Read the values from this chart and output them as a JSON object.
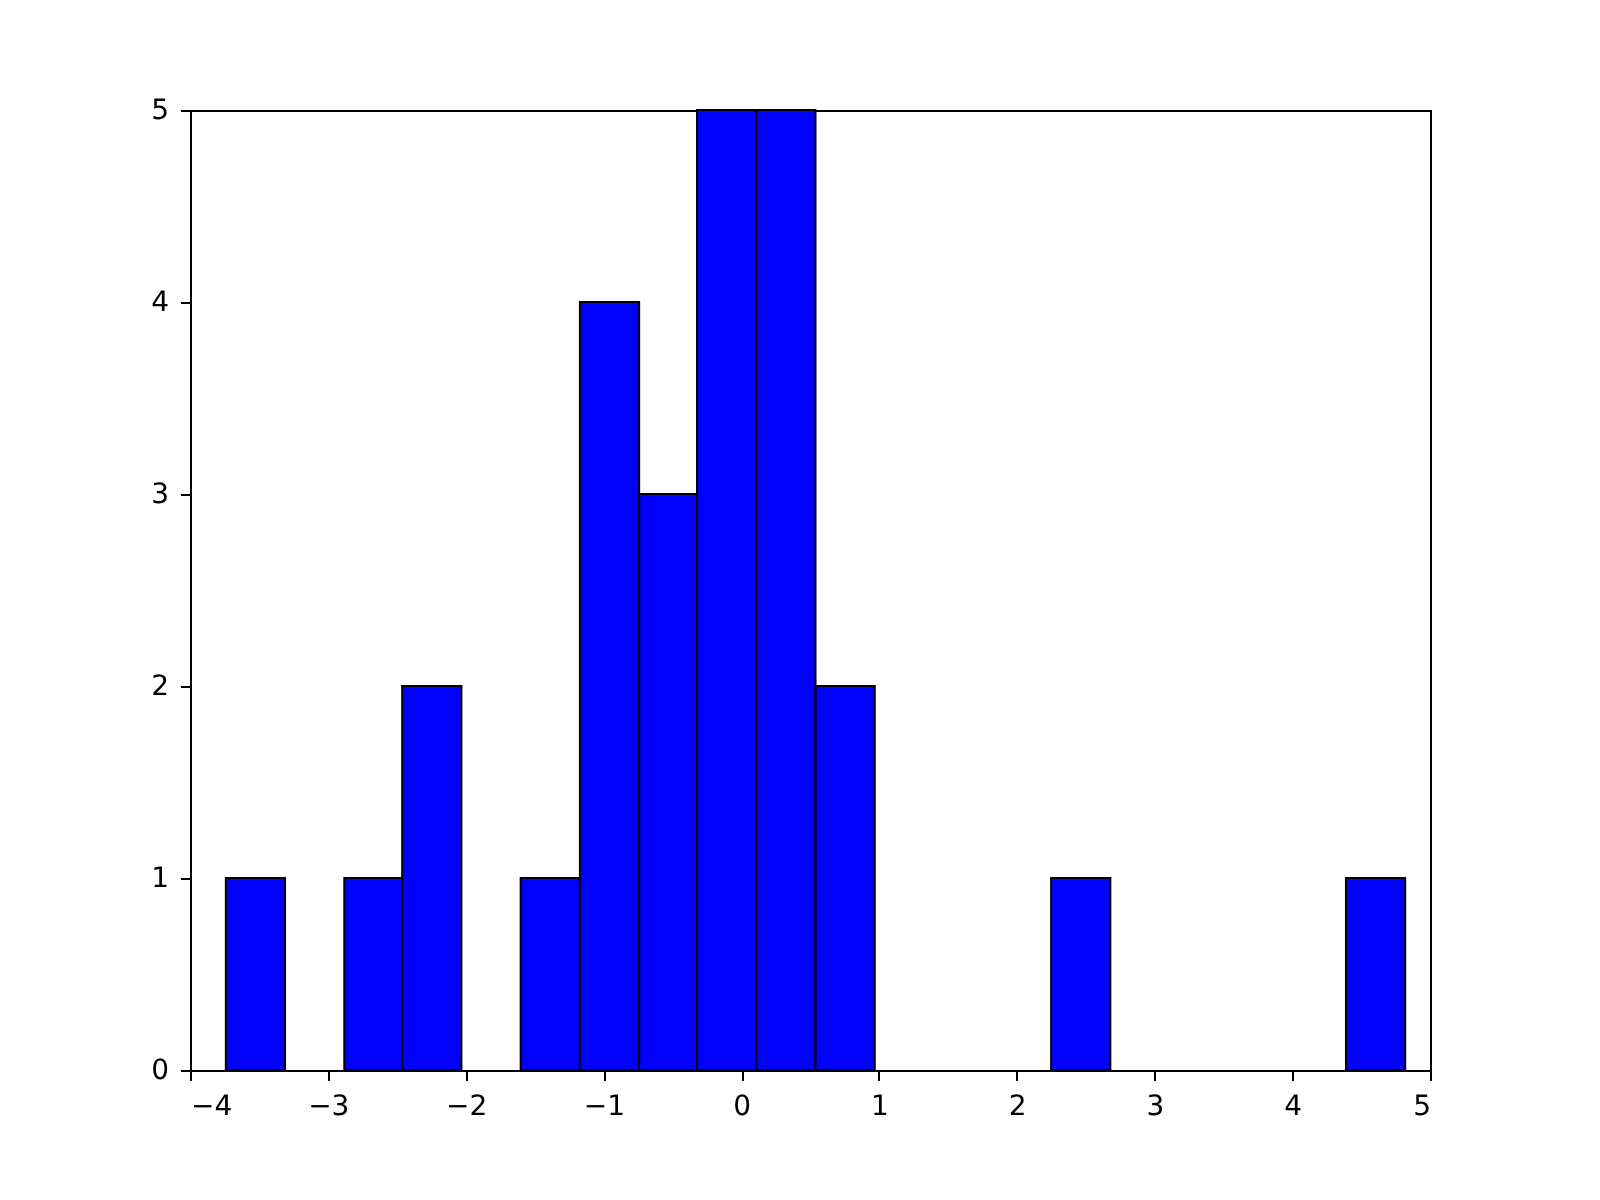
{
  "chart_data": {
    "type": "histogram",
    "bins": [
      -3.74,
      -3.31,
      -2.88,
      -2.46,
      -2.03,
      -1.6,
      -1.17,
      -0.74,
      -0.32,
      0.11,
      0.54,
      0.97,
      2.25,
      2.68,
      4.39,
      4.82
    ],
    "values": [
      1,
      0,
      1,
      2,
      0,
      1,
      4,
      3,
      5,
      5,
      2,
      0,
      1,
      0,
      1
    ],
    "color": "#0000ff",
    "xlim": [
      -4,
      5
    ],
    "xticks": [
      -4,
      -3,
      -2,
      -1,
      0,
      1,
      2,
      3,
      4,
      5
    ],
    "ylim": [
      0,
      5
    ],
    "yticks": [
      0,
      1,
      2,
      3,
      4,
      5
    ],
    "grid": false
  }
}
